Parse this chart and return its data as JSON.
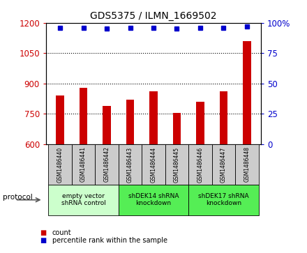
{
  "title": "GDS5375 / ILMN_1669502",
  "categories": [
    "GSM1486440",
    "GSM1486441",
    "GSM1486442",
    "GSM1486443",
    "GSM1486444",
    "GSM1486445",
    "GSM1486446",
    "GSM1486447",
    "GSM1486448"
  ],
  "counts": [
    840,
    880,
    790,
    820,
    860,
    755,
    810,
    860,
    1110
  ],
  "percentile_ranks": [
    96,
    96,
    95,
    96,
    96,
    95,
    96,
    96,
    97
  ],
  "ylim_left": [
    600,
    1200
  ],
  "ylim_right": [
    0,
    100
  ],
  "yticks_left": [
    600,
    750,
    900,
    1050,
    1200
  ],
  "yticks_right": [
    0,
    25,
    50,
    75,
    100
  ],
  "bar_color": "#cc0000",
  "dot_color": "#0000cc",
  "bg_color": "#ffffff",
  "protocol_groups": [
    {
      "label": "empty vector\nshRNA control",
      "start": 0,
      "end": 3,
      "color": "#ccffcc"
    },
    {
      "label": "shDEK14 shRNA\nknockdown",
      "start": 3,
      "end": 6,
      "color": "#55ee55"
    },
    {
      "label": "shDEK17 shRNA\nknockdown",
      "start": 6,
      "end": 9,
      "color": "#55ee55"
    }
  ],
  "legend_items": [
    {
      "label": "count",
      "color": "#cc0000"
    },
    {
      "label": "percentile rank within the sample",
      "color": "#0000cc"
    }
  ],
  "tick_bg_color": "#cccccc",
  "protocol_label": "protocol"
}
